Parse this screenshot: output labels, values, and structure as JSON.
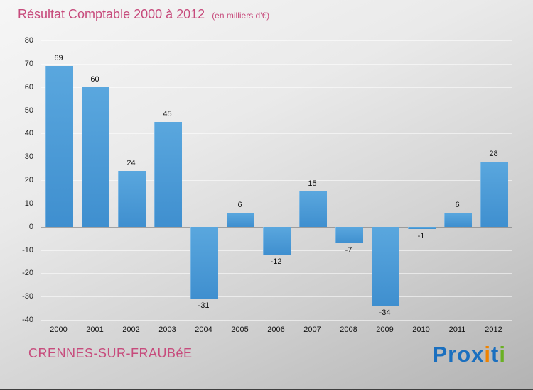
{
  "header": {
    "title": "Résultat Comptable 2000 à 2012",
    "subtitle": "(en milliers d'€)"
  },
  "footer": {
    "location": "CRENNES-SUR-FRAUBéE"
  },
  "logo": {
    "name": "Proxiti",
    "letters": [
      {
        "ch": "P",
        "color": "#1a6fbf"
      },
      {
        "ch": "r",
        "color": "#1a6fbf"
      },
      {
        "ch": "o",
        "color": "#1a6fbf"
      },
      {
        "ch": "x",
        "color": "#1a6fbf"
      },
      {
        "ch": "i",
        "color": "#f08300"
      },
      {
        "ch": "t",
        "color": "#1a6fbf"
      },
      {
        "ch": "i",
        "color": "#6ab023"
      }
    ]
  },
  "colors": {
    "accent_pink": "#c74b7c",
    "bar_blue": "#4295d5",
    "bar_blue_light": "#5aa7de",
    "background_top": "#f6f6f6",
    "background_bottom": "#b3b3b3"
  },
  "chart_data": {
    "type": "bar",
    "title": "Résultat Comptable 2000 à 2012",
    "subtitle": "(en milliers d'€)",
    "categories": [
      "2000",
      "2001",
      "2002",
      "2003",
      "2004",
      "2005",
      "2006",
      "2007",
      "2008",
      "2009",
      "2010",
      "2011",
      "2012"
    ],
    "values": [
      69,
      60,
      24,
      45,
      -31,
      6,
      -12,
      15,
      -7,
      -34,
      -1,
      6,
      28
    ],
    "xlabel": "",
    "ylabel": "",
    "ylim": [
      -40,
      80
    ],
    "ytick_step": 10,
    "grid": true,
    "legend": false,
    "bar_color": "#4295d5",
    "units": "milliers d'€"
  }
}
